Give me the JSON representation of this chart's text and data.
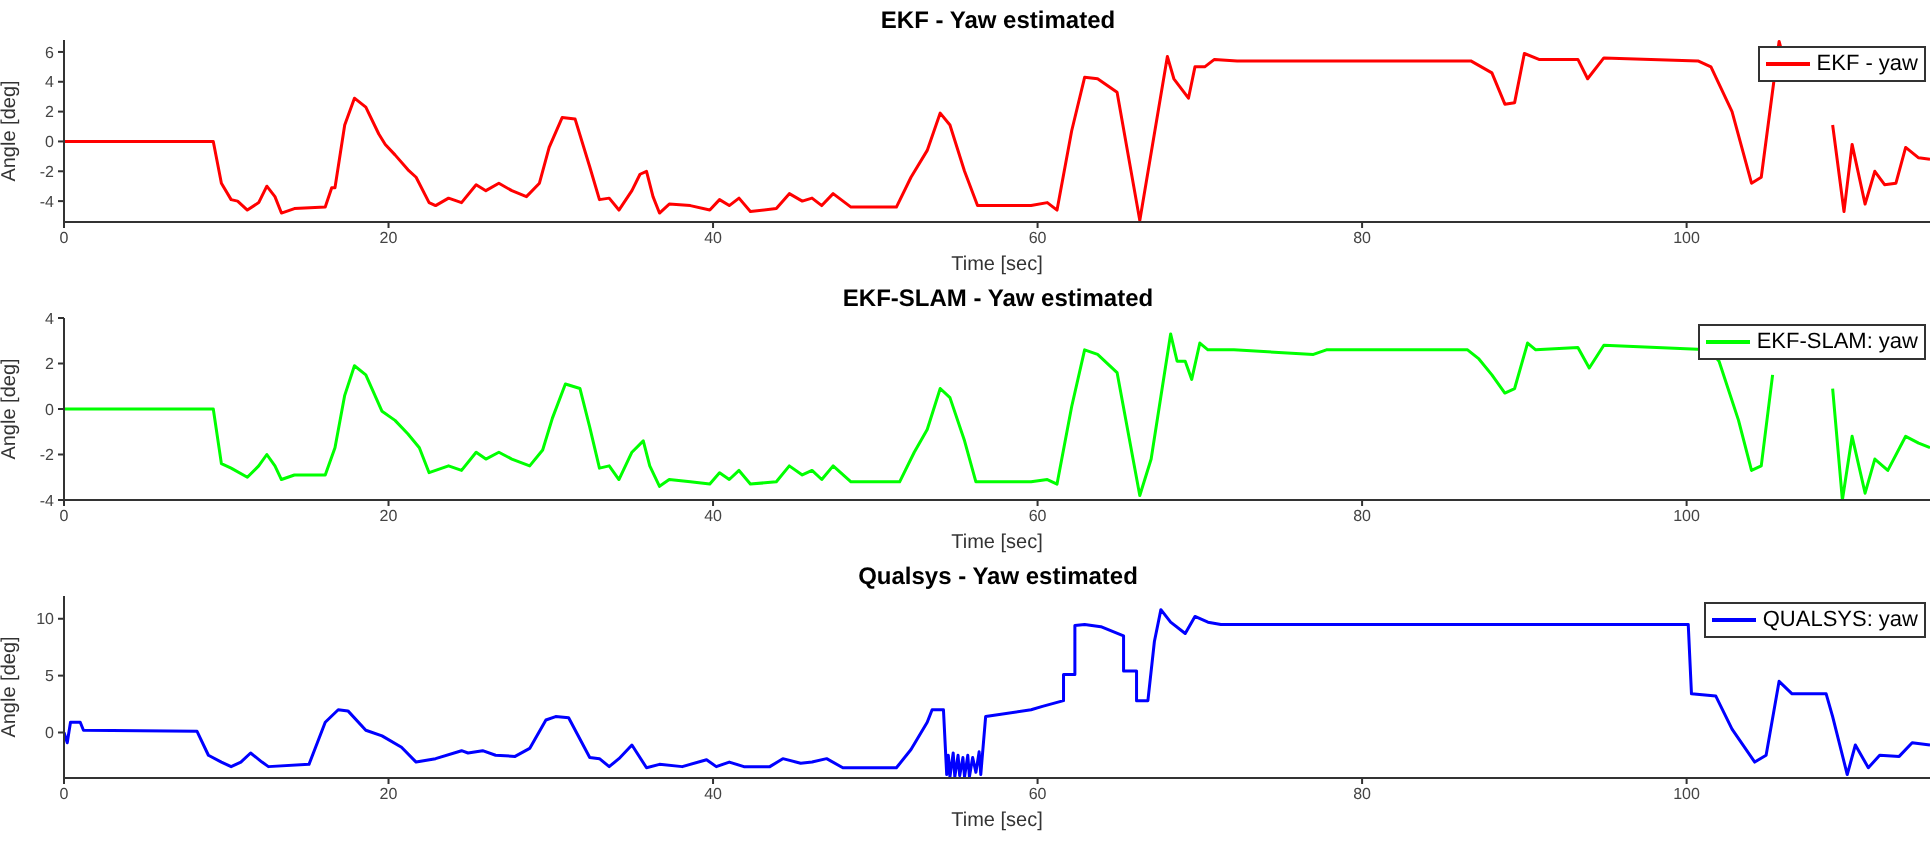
{
  "chart_data": [
    {
      "type": "line",
      "title": "EKF - Yaw estimated",
      "xlabel": "Time [sec]",
      "ylabel": "Angle [deg]",
      "xlim": [
        0,
        115
      ],
      "xticks": [
        0,
        20,
        40,
        60,
        80,
        100
      ],
      "ylim": [
        -5.4,
        6.8
      ],
      "yticks": [
        -4,
        -2,
        0,
        2,
        4,
        6
      ],
      "legend": "top right",
      "line_style": "solid",
      "x": [
        0,
        9.2,
        9.7,
        10.3,
        10.7,
        11.3,
        12,
        12.5,
        13,
        13.4,
        14.2,
        16.1,
        16.5,
        16.7,
        17.3,
        17.9,
        18.6,
        19.4,
        19.8,
        20.4,
        21.2,
        21.7,
        22.5,
        22.9,
        23.7,
        24.5,
        25.4,
        26,
        26.8,
        27.6,
        28.5,
        29.3,
        29.9,
        30.7,
        31.5,
        32.4,
        33,
        33.6,
        34.2,
        35,
        35.5,
        35.9,
        36.3,
        36.7,
        37.3,
        38.6,
        39.8,
        40.4,
        41,
        41.6,
        42.3,
        43.9,
        44.7,
        45.5,
        46.1,
        46.7,
        47.4,
        48.5,
        51.3,
        52.2,
        53.2,
        54,
        54.6,
        55.5,
        56.3,
        59.6,
        60.6,
        61.2,
        62.1,
        62.9,
        63.7,
        64.9,
        66.3,
        68,
        68.4,
        69.3,
        69.7,
        70.3,
        70.9,
        72.3,
        86.7,
        88,
        88.8,
        89.4,
        90,
        90.9,
        93.3,
        93.9,
        94.9,
        100.7,
        101.5,
        102.8,
        104,
        104.6,
        105.7,
        106,
        108.4,
        109,
        109.7,
        110.2,
        111,
        111.6,
        112.2,
        112.9,
        113.5,
        114.3,
        115
      ],
      "series": [
        {
          "name": "EKF - yaw",
          "color": "#ff0000",
          "values": [
            0,
            0,
            -2.8,
            -3.9,
            -4.0,
            -4.6,
            -4.1,
            -3.0,
            -3.7,
            -4.8,
            -4.5,
            -4.4,
            -3.1,
            -3.1,
            1.1,
            2.9,
            2.3,
            0.5,
            -0.2,
            -0.9,
            -1.9,
            -2.4,
            -4.1,
            -4.3,
            -3.8,
            -4.1,
            -2.9,
            -3.3,
            -2.8,
            -3.3,
            -3.7,
            -2.8,
            -0.4,
            1.6,
            1.5,
            -1.7,
            -3.9,
            -3.8,
            -4.6,
            -3.3,
            -2.2,
            -2.0,
            -3.7,
            -4.8,
            -4.2,
            -4.3,
            -4.6,
            -3.9,
            -4.3,
            -3.8,
            -4.7,
            -4.5,
            -3.5,
            -4.0,
            -3.8,
            -4.3,
            -3.5,
            -4.4,
            -4.4,
            -2.4,
            -0.6,
            1.9,
            1.1,
            -2.0,
            -4.3,
            -4.3,
            -4.1,
            -4.6,
            0.7,
            4.3,
            4.2,
            3.3,
            -5.3,
            5.7,
            4.2,
            2.9,
            5.0,
            5.0,
            5.5,
            5.4,
            5.4,
            4.6,
            2.5,
            2.6,
            5.9,
            5.5,
            5.5,
            4.2,
            5.6,
            5.4,
            5.0,
            2.0,
            -2.8,
            -2.4,
            6.7,
            5.5,
            null,
            1.1,
            -4.7,
            -0.2,
            -4.2,
            -2.0,
            -2.9,
            -2.8,
            -0.4,
            -1.1,
            -1.2
          ]
        }
      ]
    },
    {
      "type": "line",
      "title": "EKF-SLAM - Yaw estimated",
      "xlabel": "Time [sec]",
      "ylabel": "Angle [deg]",
      "xlim": [
        0,
        115
      ],
      "xticks": [
        0,
        20,
        40,
        60,
        80,
        100
      ],
      "ylim": [
        -4,
        4
      ],
      "yticks": [
        -4,
        -2,
        0,
        2,
        4
      ],
      "legend": "top right",
      "line_style": "solid",
      "x": [
        0,
        9.2,
        9.7,
        10.3,
        11.3,
        12,
        12.5,
        13,
        13.4,
        14.2,
        16.1,
        16.7,
        17.3,
        17.9,
        18.6,
        19.6,
        20.4,
        21.2,
        21.9,
        22.5,
        23.7,
        24.5,
        25.4,
        26,
        26.8,
        27.6,
        28.7,
        29.5,
        30.1,
        30.9,
        31.8,
        32.4,
        33,
        33.6,
        34.2,
        35,
        35.7,
        36.1,
        36.7,
        37.3,
        38.6,
        39.8,
        40.4,
        41,
        41.6,
        42.3,
        43.9,
        44.7,
        45.5,
        46.1,
        46.7,
        47.4,
        48.5,
        51.5,
        52.4,
        53.2,
        54,
        54.6,
        55.5,
        56.2,
        59.6,
        60.6,
        61.2,
        62.1,
        62.9,
        63.7,
        64.9,
        66.3,
        67,
        68.2,
        68.6,
        69.1,
        69.5,
        70,
        70.5,
        72.1,
        77,
        77.8,
        86.5,
        87.2,
        88,
        88.8,
        89.4,
        90.2,
        90.7,
        93.3,
        94,
        94.9,
        101.4,
        102,
        103.2,
        104,
        104.6,
        105.3,
        105.7,
        108.6,
        109,
        109.6,
        110.2,
        111,
        111.6,
        112.4,
        113.5,
        114.3,
        115
      ],
      "series": [
        {
          "name": "EKF-SLAM: yaw",
          "color": "#00ff00",
          "values": [
            0,
            0,
            -2.4,
            -2.6,
            -3.0,
            -2.5,
            -2.0,
            -2.5,
            -3.1,
            -2.9,
            -2.9,
            -1.7,
            0.6,
            1.9,
            1.5,
            -0.1,
            -0.5,
            -1.1,
            -1.7,
            -2.8,
            -2.5,
            -2.7,
            -1.9,
            -2.2,
            -1.9,
            -2.2,
            -2.5,
            -1.8,
            -0.4,
            1.1,
            0.9,
            -0.8,
            -2.6,
            -2.5,
            -3.1,
            -1.9,
            -1.4,
            -2.5,
            -3.4,
            -3.1,
            -3.2,
            -3.3,
            -2.8,
            -3.1,
            -2.7,
            -3.3,
            -3.2,
            -2.5,
            -2.9,
            -2.7,
            -3.1,
            -2.5,
            -3.2,
            -3.2,
            -1.9,
            -0.9,
            0.9,
            0.5,
            -1.4,
            -3.2,
            -3.2,
            -3.1,
            -3.3,
            0.1,
            2.6,
            2.4,
            1.6,
            -3.8,
            -2.2,
            3.3,
            2.1,
            2.1,
            1.3,
            2.9,
            2.6,
            2.6,
            2.4,
            2.6,
            2.6,
            2.2,
            1.5,
            0.7,
            0.9,
            2.9,
            2.6,
            2.7,
            1.8,
            2.8,
            2.6,
            2.1,
            -0.5,
            -2.7,
            -2.5,
            1.5,
            null,
            null,
            0.9,
            -4.0,
            -1.2,
            -3.7,
            -2.2,
            -2.7,
            -1.2,
            -1.5,
            -1.7
          ]
        }
      ]
    },
    {
      "type": "line",
      "title": "Qualsys - Yaw estimated",
      "xlabel": "Time [sec]",
      "ylabel": "Angle [deg]",
      "xlim": [
        0,
        115
      ],
      "xticks": [
        0,
        20,
        40,
        60,
        80,
        100
      ],
      "ylim": [
        -4,
        12
      ],
      "yticks": [
        0,
        5,
        10
      ],
      "legend": "top right",
      "line_style": "solid",
      "x": [
        0,
        0.2,
        0.4,
        1,
        1.2,
        8.2,
        8.9,
        9.7,
        10.3,
        10.9,
        11.5,
        12.2,
        12.6,
        15.1,
        16.1,
        16.9,
        17.5,
        18.6,
        19.6,
        20.8,
        21.7,
        22.9,
        24.5,
        24.9,
        25.8,
        26.6,
        27.8,
        28.7,
        29.7,
        30.3,
        31.1,
        32.4,
        33,
        33.6,
        34.2,
        35,
        35.9,
        36.7,
        38.1,
        39.6,
        40.2,
        41,
        41.9,
        43.5,
        44.3,
        45.4,
        46.1,
        47,
        48,
        51.3,
        52.2,
        53.2,
        53.5,
        54.2,
        54.4,
        54.5,
        54.6,
        54.8,
        54.9,
        55.1,
        55.2,
        55.4,
        55.5,
        55.7,
        55.8,
        56,
        56.2,
        56.4,
        56.5,
        56.8,
        59.6,
        60.3,
        61.6,
        61.6,
        62.3,
        62.3,
        62.9,
        63.9,
        65.3,
        65.3,
        66.1,
        66.1,
        66.8,
        67.2,
        67.6,
        68.2,
        69.1,
        69.7,
        70.5,
        71.3,
        100.1,
        100.3,
        101.8,
        102.8,
        104.2,
        104.9,
        105.7,
        106.5,
        108.6,
        109,
        109.9,
        110.4,
        111.2,
        111.9,
        113.1,
        113.9,
        115
      ],
      "series": [
        {
          "name": "QUALSYS: yaw",
          "color": "#0000ff",
          "values": [
            0,
            -0.9,
            0.9,
            0.9,
            0.2,
            0.1,
            -2.0,
            -2.6,
            -3.0,
            -2.6,
            -1.8,
            -2.6,
            -3.0,
            -2.8,
            0.9,
            2.0,
            1.9,
            0.2,
            -0.3,
            -1.3,
            -2.6,
            -2.3,
            -1.6,
            -1.8,
            -1.6,
            -2.0,
            -2.1,
            -1.4,
            1.1,
            1.4,
            1.3,
            -2.2,
            -2.3,
            -3.0,
            -2.3,
            -1.1,
            -3.1,
            -2.8,
            -3.0,
            -2.4,
            -3.0,
            -2.6,
            -3.0,
            -3.0,
            -2.3,
            -2.7,
            -2.6,
            -2.3,
            -3.1,
            -3.1,
            -1.5,
            0.9,
            2.0,
            2.0,
            -3.7,
            -2.0,
            -3.9,
            -1.8,
            -3.9,
            -2.0,
            -3.8,
            -2.2,
            -3.9,
            -2.0,
            -3.9,
            -2.2,
            -3.5,
            -1.7,
            -3.7,
            1.4,
            2.0,
            2.3,
            2.8,
            5.1,
            5.1,
            9.4,
            9.5,
            9.3,
            8.5,
            5.4,
            5.4,
            2.8,
            2.8,
            8.0,
            10.8,
            9.7,
            8.7,
            10.2,
            9.7,
            9.5,
            9.5,
            3.4,
            3.2,
            0.3,
            -2.6,
            -2.0,
            4.5,
            3.4,
            3.4,
            1.4,
            -3.7,
            -1.1,
            -3.1,
            -2.0,
            -2.1,
            -0.9,
            -1.1
          ]
        }
      ]
    }
  ]
}
